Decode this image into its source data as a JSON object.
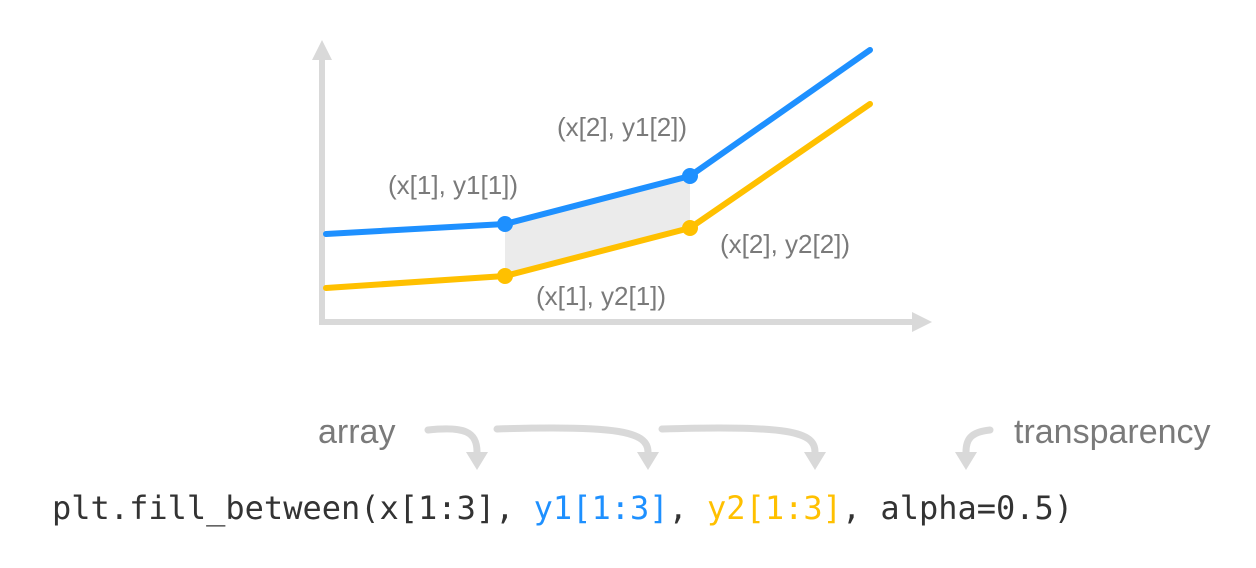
{
  "colors": {
    "axis": "#d9d9d9",
    "line_y1": "#1e90ff",
    "line_y2": "#ffc000",
    "fill": "#ebebeb",
    "label": "#7a7a7a",
    "code_default": "#333333",
    "arrow": "#d9d9d9"
  },
  "point_labels": {
    "x1_y1": "(x[1], y1[1])",
    "x2_y1": "(x[2], y1[2])",
    "x1_y2": "(x[1], y2[1])",
    "x2_y2": "(x[2], y2[2])"
  },
  "annotations": {
    "array": "array",
    "transparency": "transparency"
  },
  "code": {
    "prefix": "plt.fill_between(x[1:3], ",
    "y1_arg": "y1[1:3]",
    "sep1": ", ",
    "y2_arg": "y2[1:3]",
    "suffix": ", alpha=0.5)"
  }
}
